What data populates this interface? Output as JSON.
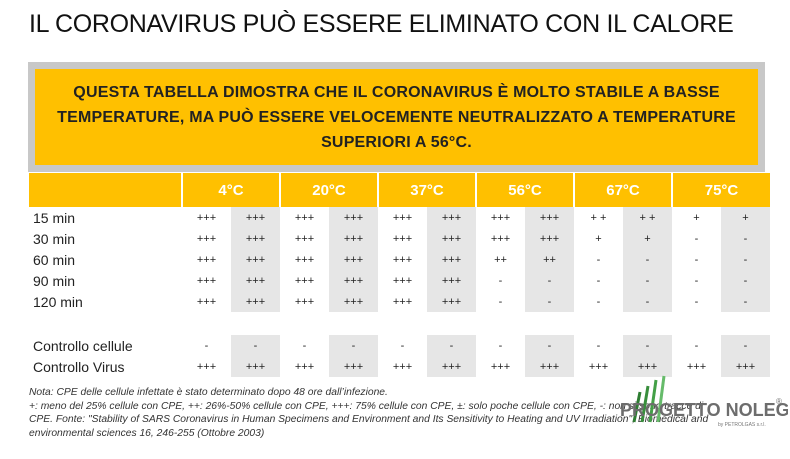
{
  "title": "IL CORONAVIRUS PUÒ ESSERE ELIMINATO CON IL CALORE",
  "banner": [
    "QUESTA TABELLA DIMOSTRA CHE IL CORONAVIRUS È MOLTO STABILE A BASSE",
    "TEMPERATURE, MA PUÒ ESSERE VELOCEMENTE NEUTRALIZZATO A TEMPERATURE",
    "SUPERIORI A 56°C."
  ],
  "table": {
    "headers": [
      "4°C",
      "20°C",
      "37°C",
      "56°C",
      "67°C",
      "75°C"
    ],
    "rows": [
      {
        "label": "15 min",
        "cells": [
          "+++",
          "+++",
          "+++",
          "+++",
          "+++",
          "+++",
          "+++",
          "+++",
          "+ +",
          "+ +",
          "+",
          "+"
        ]
      },
      {
        "label": "30 min",
        "cells": [
          "+++",
          "+++",
          "+++",
          "+++",
          "+++",
          "+++",
          "+++",
          "+++",
          "+",
          "+",
          "-",
          "-"
        ]
      },
      {
        "label": "60 min",
        "cells": [
          "+++",
          "+++",
          "+++",
          "+++",
          "+++",
          "+++",
          "++",
          "++",
          "-",
          "-",
          "-",
          "-"
        ]
      },
      {
        "label": "90 min",
        "cells": [
          "+++",
          "+++",
          "+++",
          "+++",
          "+++",
          "+++",
          "-",
          "-",
          "-",
          "-",
          "-",
          "-"
        ]
      },
      {
        "label": "120 min",
        "cells": [
          "+++",
          "+++",
          "+++",
          "+++",
          "+++",
          "+++",
          "-",
          "-",
          "-",
          "-",
          "-",
          "-"
        ]
      }
    ],
    "control_rows": [
      {
        "label": "Controllo cellule",
        "cells": [
          "-",
          "-",
          "-",
          "-",
          "-",
          "-",
          "-",
          "-",
          "-",
          "-",
          "-",
          "-"
        ]
      },
      {
        "label": "Controllo Virus",
        "cells": [
          "+++",
          "+++",
          "+++",
          "+++",
          "+++",
          "+++",
          "+++",
          "+++",
          "+++",
          "+++",
          "+++",
          "+++"
        ]
      }
    ]
  },
  "notes": [
    "Nota: CPE delle cellule infettate è stato determinato dopo 48 ore dall’infezione.",
    "+: meno del 25% cellule con CPE, ++: 26%-50% cellule con CPE, +++: 75% cellule con CPE, ±: solo poche cellule con CPE, -: non si sono tracce di",
    "CPE. Fonte: \"Stability of SARS Coronavirus in Human Specimens and Environment and Its Sensitivity to Heating and UV Irradiation\", Biomedical and",
    "environmental sciences 16, 246-255 (Ottobre 2003)"
  ],
  "logo": {
    "name": "PROGETTO NOLEGGI",
    "mark": "®",
    "sub": "by PETROLGAS s.r.l."
  }
}
